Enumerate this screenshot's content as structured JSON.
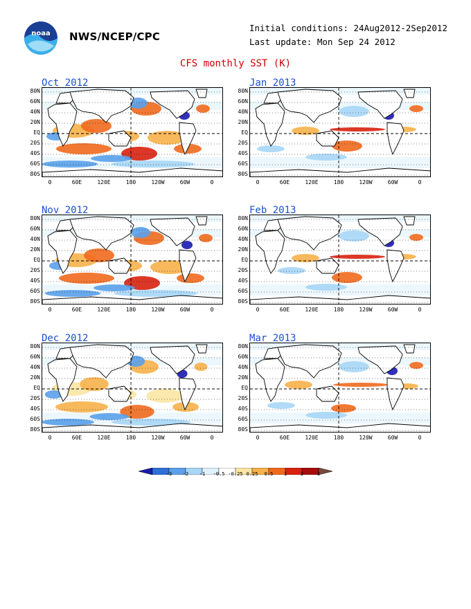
{
  "header": {
    "org": "NWS/NCEP/CPC",
    "initial_conditions": "Initial conditions: 24Aug2012-2Sep2012",
    "last_update": "Last update: Mon Sep 24 2012",
    "title": "CFS monthly SST (K)",
    "logo_text": "noaa"
  },
  "panels": [
    {
      "title": "Oct 2012",
      "pattern": 0
    },
    {
      "title": "Jan 2013",
      "pattern": 3
    },
    {
      "title": "Nov 2012",
      "pattern": 1
    },
    {
      "title": "Feb 2013",
      "pattern": 4
    },
    {
      "title": "Dec 2012",
      "pattern": 2
    },
    {
      "title": "Mar 2013",
      "pattern": 5
    }
  ],
  "lat_labels": [
    "80N",
    "60N",
    "40N",
    "20N",
    "EQ",
    "20S",
    "40S",
    "60S",
    "80S"
  ],
  "lon_labels": [
    "0",
    "60E",
    "120E",
    "180",
    "120W",
    "60W",
    "0"
  ],
  "colorbar": {
    "labels": [
      "-3",
      "-2",
      "-1",
      "-0.5",
      "-0.25",
      "0.25",
      "0.5",
      "1",
      "2",
      "3"
    ],
    "colors": [
      "#1a1ab0",
      "#2f6fd8",
      "#5aa0ea",
      "#a7d6f7",
      "#dff1fb",
      "#ffffff",
      "#fbe6a3",
      "#f7b14a",
      "#f06a1e",
      "#d8210f",
      "#a60c0c",
      "#7a4a3a"
    ]
  }
}
